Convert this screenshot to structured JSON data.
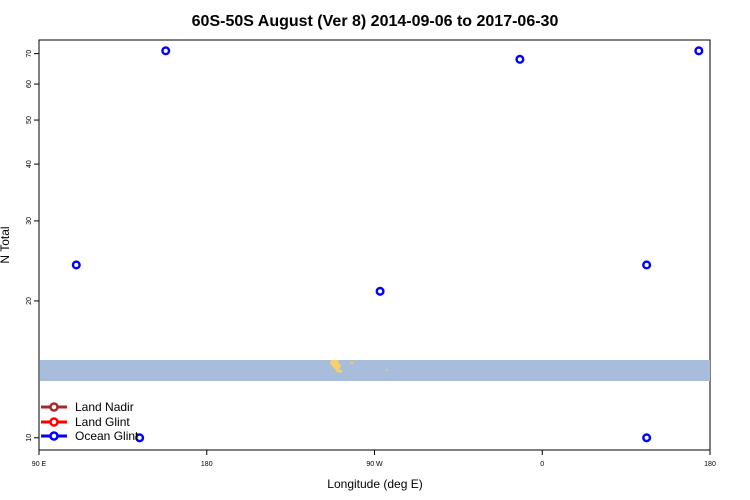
{
  "chart_data": {
    "type": "scatter",
    "title": "60S-50S August (Ver 8)   2014-09-06 to 2017-06-30",
    "xlabel": "Longitude (deg E)",
    "ylabel": "N Total",
    "y_scale": "log",
    "xlim": [
      90,
      450
    ],
    "ylim": [
      9.4,
      75
    ],
    "x_ticks": [
      {
        "value": 90,
        "label": "90 E"
      },
      {
        "value": 180,
        "label": "180"
      },
      {
        "value": 270,
        "label": "90 W"
      },
      {
        "value": 360,
        "label": "0"
      },
      {
        "value": 450,
        "label": "90 E"
      }
    ],
    "x_ticks_right": {
      "value": 450,
      "label": "180"
    },
    "y_ticks": [
      {
        "value": 10,
        "label": "10"
      },
      {
        "value": 20,
        "label": "20"
      },
      {
        "value": 30,
        "label": "30"
      },
      {
        "value": 40,
        "label": "40"
      },
      {
        "value": 50,
        "label": "50"
      },
      {
        "value": 60,
        "label": "60"
      },
      {
        "value": 70,
        "label": "70"
      }
    ],
    "series": [
      {
        "name": "Land Nadir",
        "color": "#a52a2a",
        "points": []
      },
      {
        "name": "Land Glint",
        "color": "#ff0000",
        "points": []
      },
      {
        "name": "Ocean Glint",
        "color": "#0000ff",
        "points": [
          {
            "x": 110,
            "y": 24
          },
          {
            "x": 144,
            "y": 10
          },
          {
            "x": 158,
            "y": 71
          },
          {
            "x": 273,
            "y": 21
          },
          {
            "x": 416,
            "y": 10
          },
          {
            "x": 348,
            "y": 68
          },
          {
            "x": 416,
            "y": 24
          },
          {
            "x": 444,
            "y": 71
          }
        ]
      }
    ],
    "legend_position": "bottom-left",
    "map_band": {
      "color": "#a7bddb",
      "land_color": "#f5d06b"
    }
  }
}
